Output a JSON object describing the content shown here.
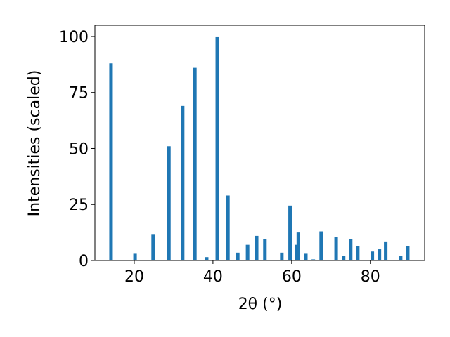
{
  "chart_data": {
    "type": "bar",
    "xlabel": "2θ (°)",
    "ylabel": "Intensities (scaled)",
    "x": [
      14.1,
      20.2,
      24.8,
      28.8,
      32.3,
      35.4,
      38.4,
      41.1,
      43.8,
      46.3,
      48.8,
      51.1,
      53.2,
      57.5,
      59.6,
      61.3,
      61.7,
      63.6,
      65.5,
      67.5,
      71.3,
      73.2,
      75.0,
      76.8,
      80.5,
      82.3,
      83.9,
      87.7,
      89.5
    ],
    "values": [
      88,
      3,
      11.5,
      51,
      69,
      86,
      1.5,
      100,
      29,
      3.5,
      7,
      11,
      9.5,
      3.5,
      24.5,
      7,
      12.5,
      3,
      0.5,
      13,
      10.5,
      2,
      9.5,
      6.5,
      4,
      5,
      8.5,
      2,
      6.5
    ],
    "color": "#1f77b4",
    "xlim": [
      10,
      93.8
    ],
    "xticks": [
      20,
      40,
      60,
      80
    ],
    "ylim": [
      0,
      105
    ],
    "yticks": [
      0,
      25,
      50,
      75,
      100
    ]
  }
}
